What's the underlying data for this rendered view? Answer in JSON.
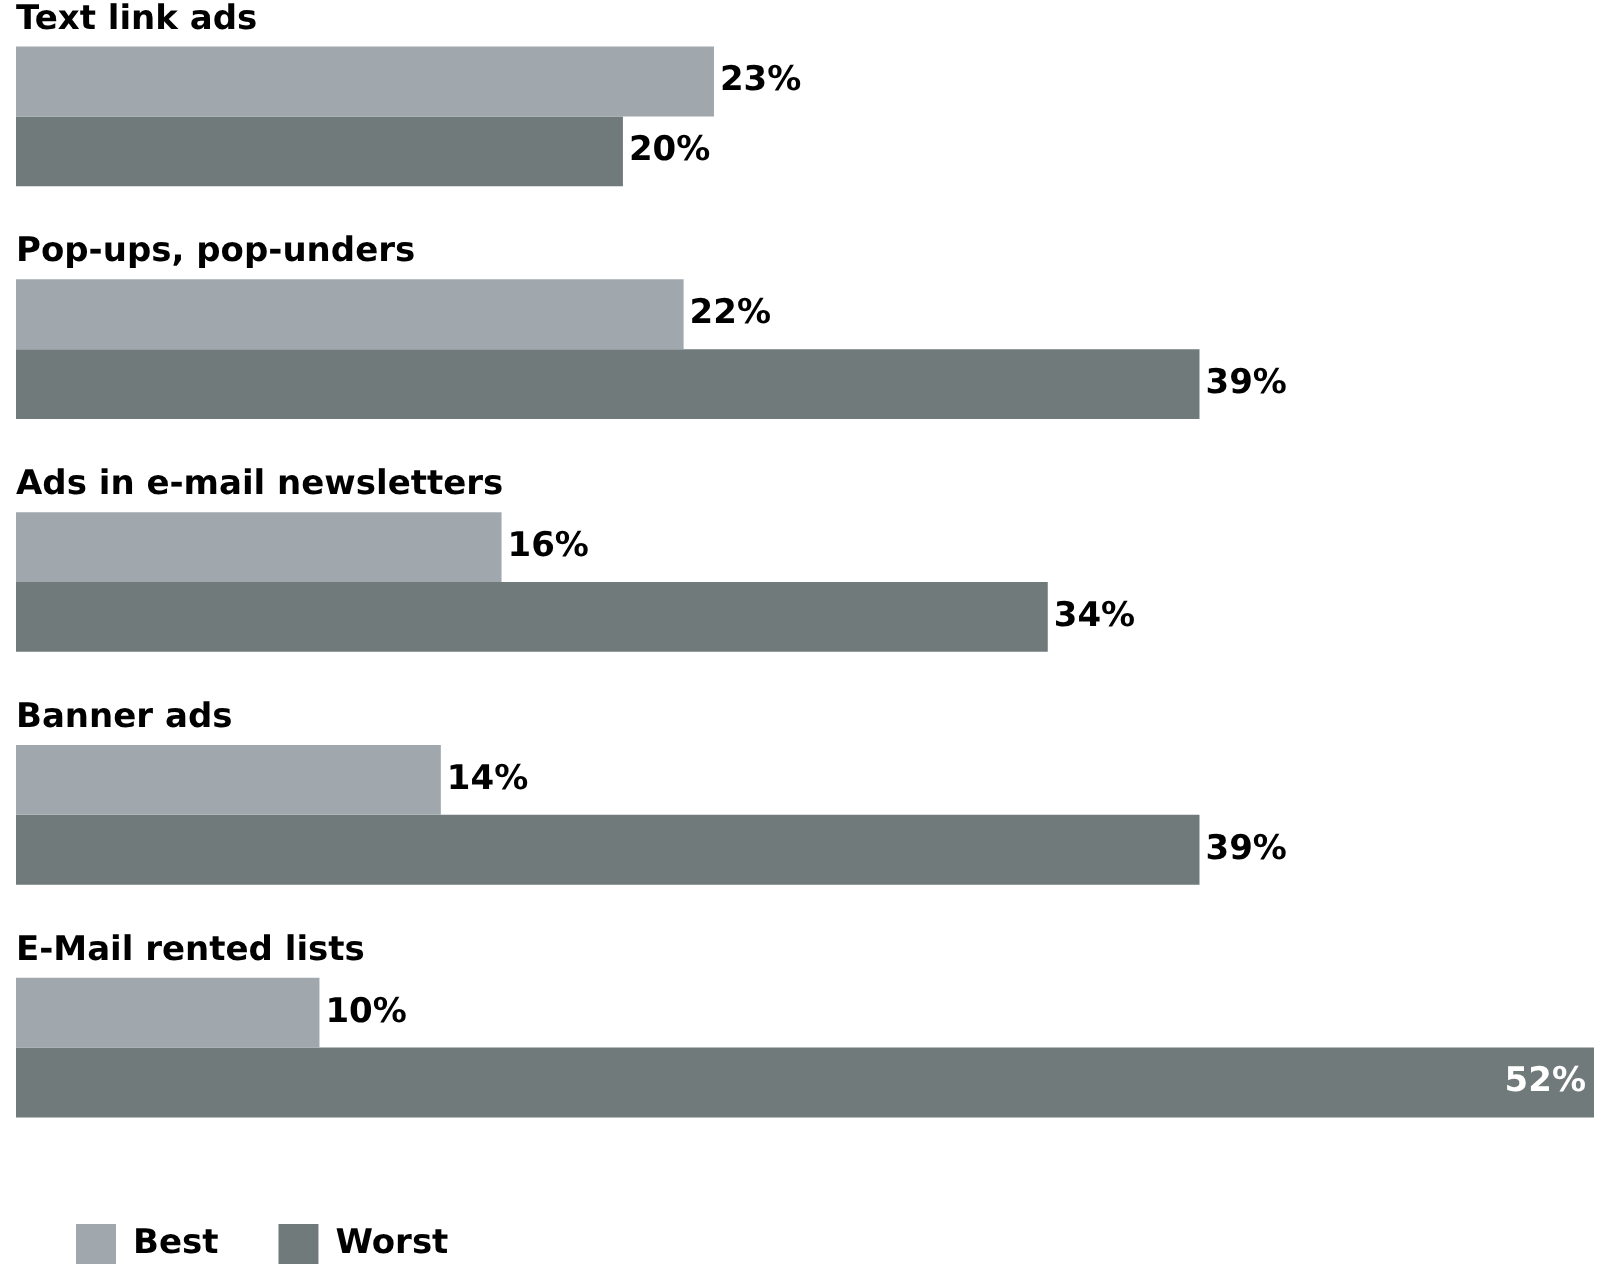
{
  "chart_data": {
    "type": "bar",
    "orientation": "horizontal",
    "categories": [
      "Text link ads",
      "Pop-ups, pop-unders",
      "Ads in e-mail newsletters",
      "Banner ads",
      "E-Mail rented lists"
    ],
    "series": [
      {
        "name": "Best",
        "color": "#a0a8ae",
        "values": [
          23,
          22,
          16,
          14,
          10
        ],
        "value_labels": [
          "23%",
          "22%",
          "16%",
          "14%",
          "10%"
        ]
      },
      {
        "name": "Worst",
        "color": "#717a7b",
        "values": [
          20,
          39,
          34,
          39,
          52
        ],
        "value_labels": [
          "20%",
          "39%",
          "34%",
          "39%",
          "52%"
        ]
      }
    ],
    "legend": "bottom"
  }
}
